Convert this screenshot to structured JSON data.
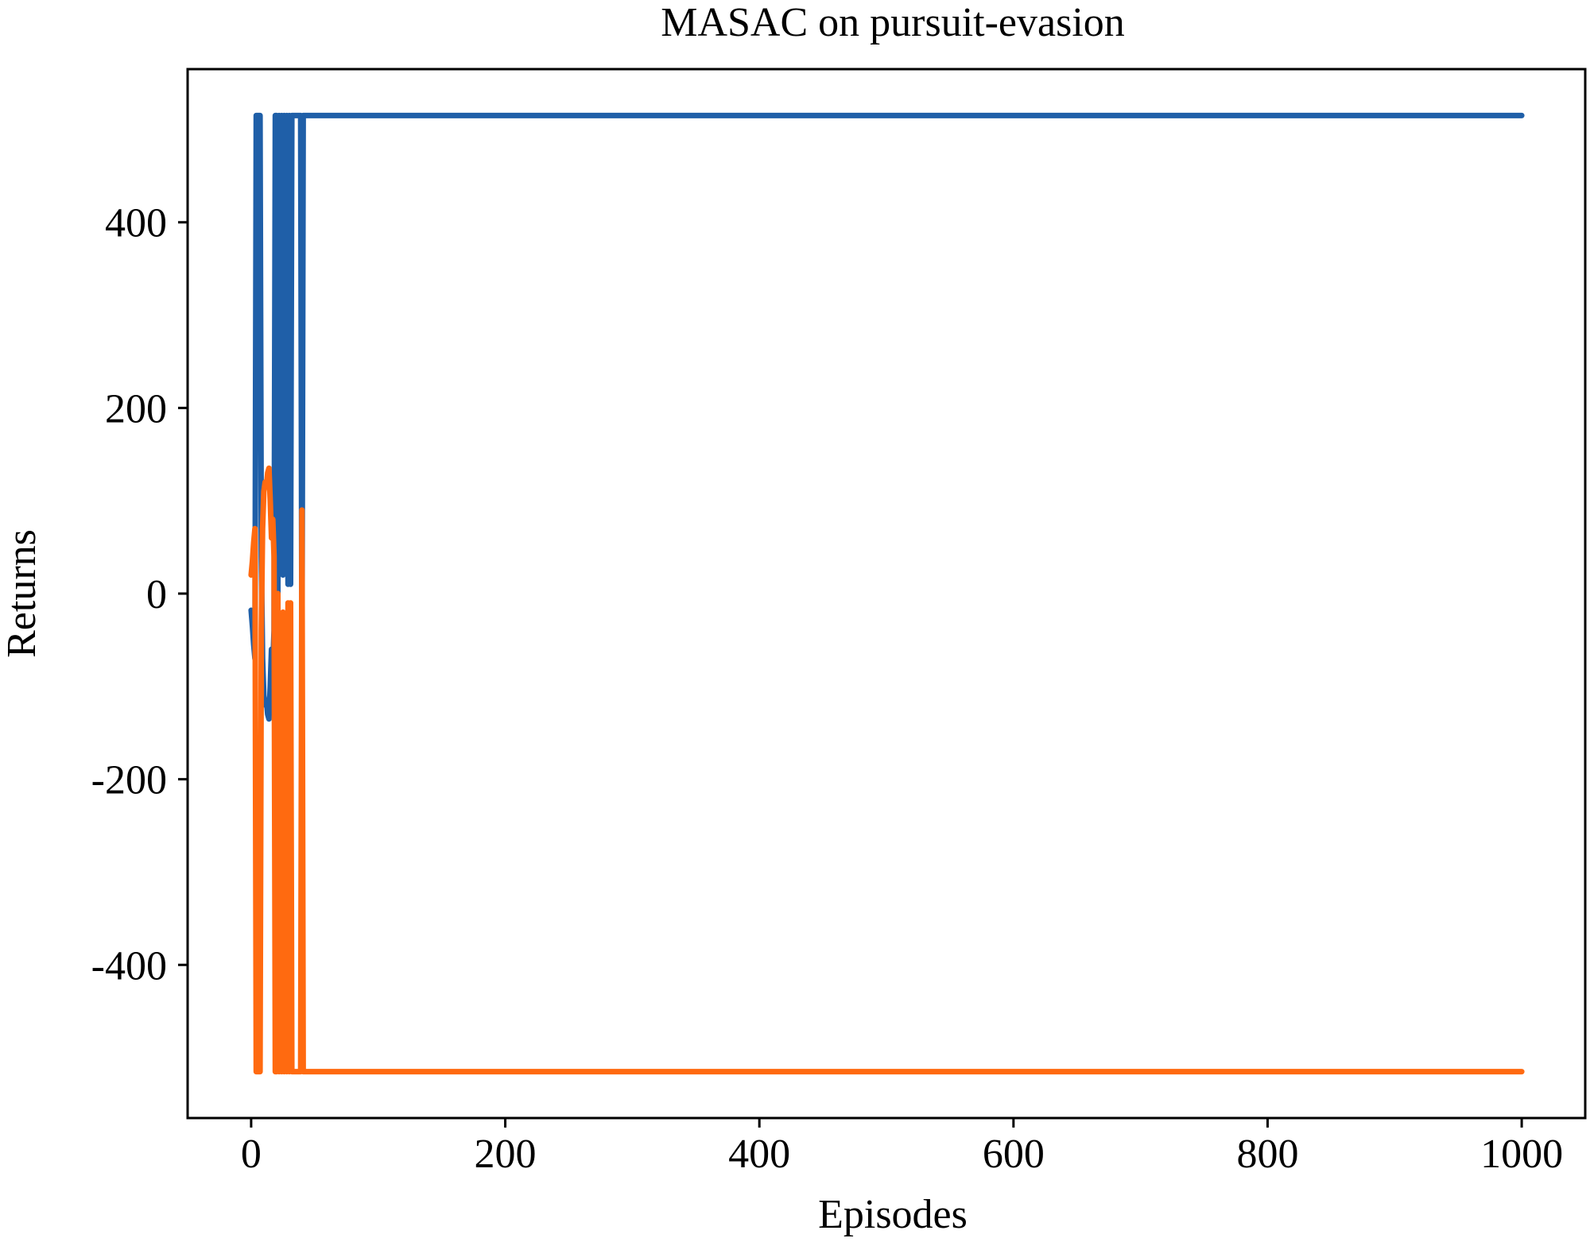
{
  "chart_data": {
    "type": "line",
    "title": "MASAC on pursuit-evasion",
    "xlabel": "Episodes",
    "ylabel": "Returns",
    "xlim": [
      -50,
      1050
    ],
    "ylim": [
      -565,
      565
    ],
    "xticks": [
      0,
      200,
      400,
      600,
      800,
      1000
    ],
    "yticks": [
      -400,
      -200,
      0,
      200,
      400
    ],
    "grid": false,
    "legend": "none",
    "series": [
      {
        "color": "#1f5fa8",
        "x": [
          0,
          1,
          2,
          3,
          4,
          5,
          6,
          7,
          8,
          9,
          10,
          11,
          12,
          13,
          14,
          15,
          16,
          17,
          18,
          19,
          20,
          21,
          22,
          23,
          24,
          25,
          26,
          27,
          28,
          29,
          30,
          31,
          32,
          33,
          34,
          35,
          36,
          37,
          38,
          39,
          40,
          41,
          42,
          43,
          44,
          45,
          46,
          47,
          48,
          49,
          50,
          60,
          100,
          200,
          400,
          600,
          800,
          1000
        ],
        "y": [
          -18,
          -35,
          -55,
          -70,
          515,
          515,
          515,
          515,
          40,
          -70,
          -110,
          -120,
          -115,
          -130,
          -135,
          -100,
          -60,
          -80,
          -40,
          515,
          515,
          0,
          515,
          30,
          515,
          20,
          515,
          40,
          515,
          10,
          515,
          10,
          515,
          515,
          515,
          515,
          515,
          515,
          515,
          515,
          -90,
          515,
          515,
          515,
          515,
          515,
          515,
          515,
          515,
          515,
          515,
          515,
          515,
          515,
          515,
          515,
          515,
          515
        ]
      },
      {
        "color": "#ff6a10",
        "x": [
          0,
          1,
          2,
          3,
          4,
          5,
          6,
          7,
          8,
          9,
          10,
          11,
          12,
          13,
          14,
          15,
          16,
          17,
          18,
          19,
          20,
          21,
          22,
          23,
          24,
          25,
          26,
          27,
          28,
          29,
          30,
          31,
          32,
          33,
          34,
          35,
          36,
          37,
          38,
          39,
          40,
          41,
          42,
          43,
          44,
          45,
          46,
          47,
          48,
          49,
          50,
          60,
          100,
          200,
          400,
          600,
          800,
          1000
        ],
        "y": [
          20,
          35,
          55,
          70,
          -515,
          -515,
          -515,
          -515,
          -40,
          70,
          110,
          120,
          115,
          130,
          135,
          100,
          60,
          80,
          40,
          -515,
          -515,
          0,
          -515,
          -30,
          -515,
          -20,
          -515,
          -40,
          -515,
          -10,
          -515,
          -10,
          -515,
          -515,
          -515,
          -515,
          -515,
          -515,
          -515,
          -515,
          90,
          -515,
          -515,
          -515,
          -515,
          -515,
          -515,
          -515,
          -515,
          -515,
          -515,
          -515,
          -515,
          -515,
          -515,
          -515,
          -515,
          -515
        ]
      }
    ]
  }
}
